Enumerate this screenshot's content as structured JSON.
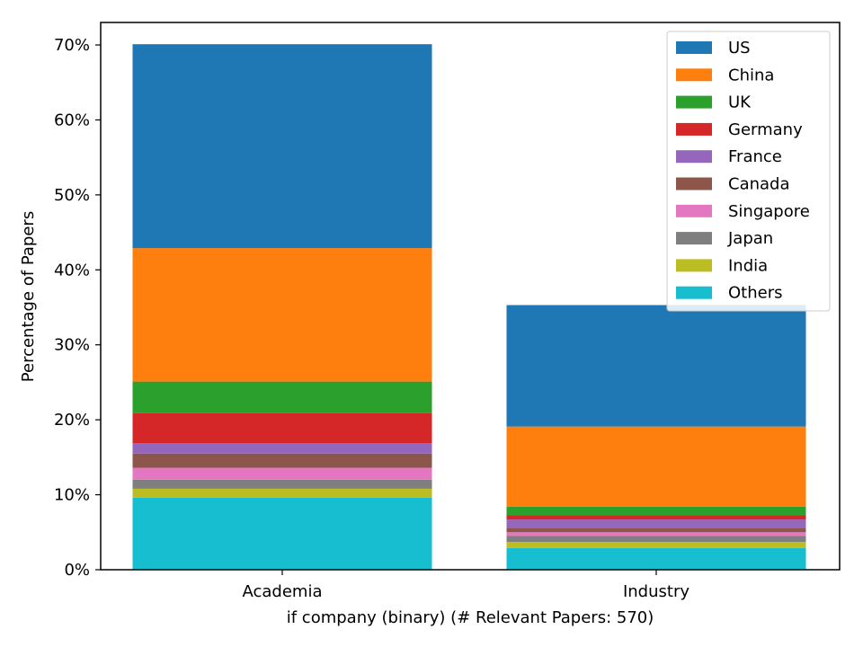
{
  "chart_data": {
    "type": "bar",
    "stacked": true,
    "categories": [
      "Academia",
      "Industry"
    ],
    "xlabel": "if company (binary) (# Relevant Papers: 570)",
    "ylabel": "Percentage of Papers",
    "ylim": [
      0,
      73
    ],
    "yticks": [
      0,
      10,
      20,
      30,
      40,
      50,
      60,
      70
    ],
    "ytick_labels": [
      "0%",
      "10%",
      "20%",
      "30%",
      "40%",
      "50%",
      "60%",
      "70%"
    ],
    "grid": false,
    "legend_position": "top-right",
    "series": [
      {
        "name": "Others",
        "color": "#17becf",
        "values": [
          9.6,
          2.9
        ]
      },
      {
        "name": "India",
        "color": "#bcbd22",
        "values": [
          1.2,
          0.8
        ]
      },
      {
        "name": "Japan",
        "color": "#7f7f7f",
        "values": [
          1.2,
          0.8
        ]
      },
      {
        "name": "Singapore",
        "color": "#e377c2",
        "values": [
          1.6,
          0.5
        ]
      },
      {
        "name": "Canada",
        "color": "#8c564b",
        "values": [
          1.9,
          0.6
        ]
      },
      {
        "name": "France",
        "color": "#9467bd",
        "values": [
          1.4,
          1.1
        ]
      },
      {
        "name": "Germany",
        "color": "#d62728",
        "values": [
          4.0,
          0.6
        ]
      },
      {
        "name": "UK",
        "color": "#2ca02c",
        "values": [
          4.2,
          1.1
        ]
      },
      {
        "name": "China",
        "color": "#ff7f0e",
        "values": [
          17.8,
          10.7
        ]
      },
      {
        "name": "US",
        "color": "#1f77b4",
        "values": [
          27.2,
          16.2
        ]
      }
    ],
    "legend_order": [
      "US",
      "China",
      "UK",
      "Germany",
      "France",
      "Canada",
      "Singapore",
      "Japan",
      "India",
      "Others"
    ]
  }
}
